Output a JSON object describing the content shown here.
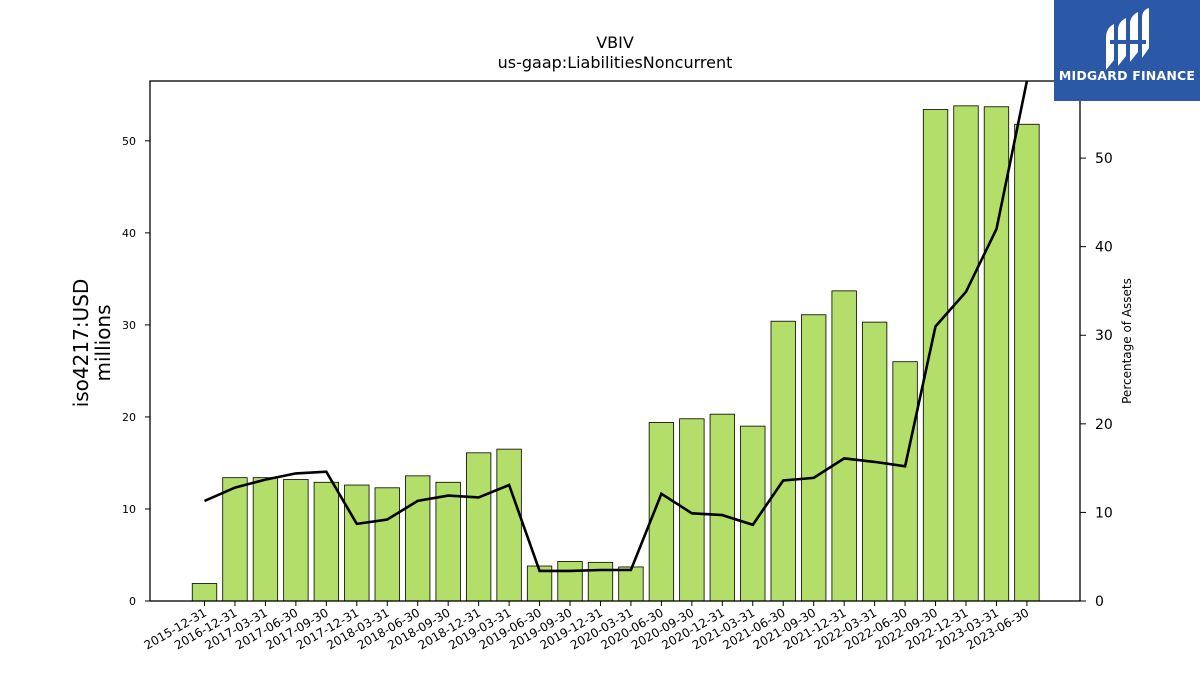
{
  "chart_data": {
    "type": "bar",
    "title": "VBIV",
    "subtitle": "us-gaap:LiabilitiesNoncurrent",
    "ylabel": "iso4217:USD\nmillions",
    "y2label": "Percentage of Assets",
    "ylim": [
      0,
      56.5
    ],
    "y2lim": [
      0,
      58.7
    ],
    "yticks": [
      0,
      10,
      20,
      30,
      40,
      50
    ],
    "y2ticks": [
      0,
      10,
      20,
      30,
      40,
      50
    ],
    "categories": [
      "2015-12-31",
      "2016-12-31",
      "2017-03-31",
      "2017-06-30",
      "2017-09-30",
      "2017-12-31",
      "2018-03-31",
      "2018-06-30",
      "2018-09-30",
      "2018-12-31",
      "2019-03-31",
      "2019-06-30",
      "2019-09-30",
      "2019-12-31",
      "2020-03-31",
      "2020-06-30",
      "2020-09-30",
      "2020-12-31",
      "2021-03-31",
      "2021-06-30",
      "2021-09-30",
      "2021-12-31",
      "2022-03-31",
      "2022-06-30",
      "2022-09-30",
      "2022-12-31",
      "2023-03-31",
      "2023-06-30"
    ],
    "series": [
      {
        "kind": "bar",
        "axis": "left",
        "color": "#b3de69",
        "values": [
          1.9,
          13.4,
          13.4,
          13.2,
          12.9,
          12.6,
          12.3,
          13.6,
          12.9,
          16.1,
          16.5,
          3.8,
          4.3,
          4.2,
          3.7,
          19.4,
          19.8,
          20.3,
          19.0,
          30.4,
          31.1,
          33.7,
          30.3,
          26.0,
          53.4,
          53.8,
          53.7,
          51.8
        ]
      },
      {
        "kind": "line",
        "axis": "right",
        "color": "#000000",
        "values": [
          11.3,
          12.8,
          13.7,
          14.4,
          14.6,
          8.7,
          9.2,
          11.3,
          11.9,
          11.7,
          13.1,
          3.4,
          3.4,
          3.5,
          3.5,
          12.1,
          9.9,
          9.7,
          8.6,
          13.6,
          13.9,
          16.1,
          15.7,
          15.2,
          31.0,
          34.9,
          42.0,
          58.7
        ]
      }
    ],
    "grid": false
  },
  "logo": {
    "text": "MIDGARD FINANCE",
    "bg": "#2b59a8"
  }
}
